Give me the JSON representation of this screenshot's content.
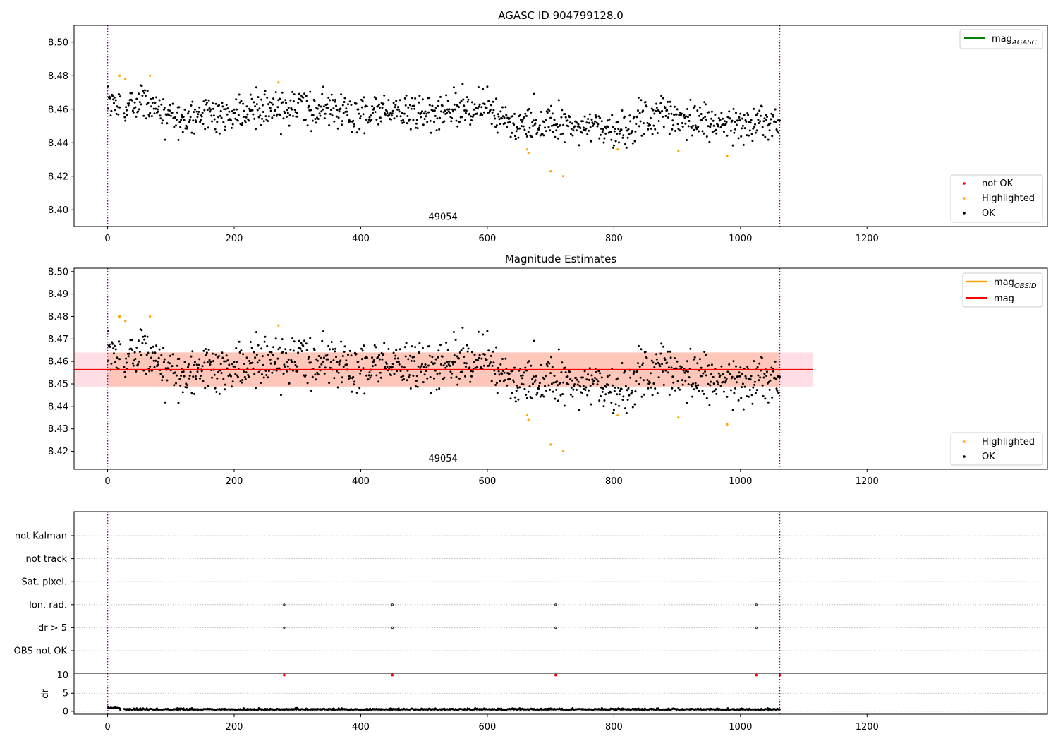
{
  "chart_data": [
    {
      "type": "scatter",
      "title": "AGASC ID 904799128.0",
      "xlim": [
        -53,
        1485
      ],
      "ylim": [
        8.39,
        8.51
      ],
      "x_ticks": [
        0,
        200,
        400,
        600,
        800,
        1000,
        1200
      ],
      "y_ticks": [
        8.4,
        8.42,
        8.44,
        8.46,
        8.48,
        8.5
      ],
      "y_tick_labels": [
        "8.40",
        "8.42",
        "8.44",
        "8.46",
        "8.48",
        "8.50"
      ],
      "annotation": {
        "text": "49054",
        "x": 530,
        "y": 8.394
      },
      "vlines": [
        0,
        1062
      ],
      "line_legend": [
        {
          "name": "mag",
          "sub": "AGASC",
          "color": "#008000"
        }
      ],
      "marker_legend": [
        {
          "name": "not OK",
          "color": "#ff0000"
        },
        {
          "name": "Highlighted",
          "color": "#ffa500"
        },
        {
          "name": "OK",
          "color": "#000000"
        }
      ],
      "mean": 8.4562,
      "noise": 0.0055,
      "highlighted": [
        [
          19,
          8.48
        ],
        [
          28,
          8.478
        ],
        [
          67,
          8.48
        ],
        [
          270,
          8.476
        ],
        [
          663,
          8.436
        ],
        [
          665,
          8.434
        ],
        [
          700,
          8.423
        ],
        [
          720,
          8.42
        ],
        [
          806,
          8.436
        ],
        [
          902,
          8.435
        ],
        [
          979,
          8.432
        ]
      ],
      "series_segments": [
        [
          0,
          8.465
        ],
        [
          60,
          8.462
        ],
        [
          120,
          8.455
        ],
        [
          200,
          8.457
        ],
        [
          280,
          8.462
        ],
        [
          400,
          8.458
        ],
        [
          500,
          8.459
        ],
        [
          600,
          8.461
        ],
        [
          650,
          8.448
        ],
        [
          700,
          8.453
        ],
        [
          760,
          8.449
        ],
        [
          820,
          8.448
        ],
        [
          880,
          8.458
        ],
        [
          940,
          8.451
        ],
        [
          1062,
          8.454
        ]
      ]
    },
    {
      "type": "scatter",
      "title": "Magnitude Estimates",
      "xlim": [
        -53,
        1485
      ],
      "ylim": [
        8.412,
        8.5015
      ],
      "x_ticks": [
        0,
        200,
        400,
        600,
        800,
        1000,
        1200
      ],
      "y_ticks": [
        8.42,
        8.43,
        8.44,
        8.45,
        8.46,
        8.47,
        8.48,
        8.49,
        8.5
      ],
      "y_tick_labels": [
        "8.42",
        "8.43",
        "8.44",
        "8.45",
        "8.46",
        "8.47",
        "8.48",
        "8.49",
        "8.50"
      ],
      "annotation": {
        "text": "49054",
        "x": 530,
        "y": 8.4155
      },
      "vlines": [
        0,
        1062
      ],
      "mag_line": 8.4563,
      "band_outer": {
        "x": [
          -53,
          1115
        ],
        "y": [
          8.4488,
          8.464
        ],
        "color": "#ffc0cb"
      },
      "band_inner": {
        "x": [
          0,
          1062
        ],
        "y": [
          8.4488,
          8.464
        ],
        "color": "#ffa07a"
      },
      "line_legend": [
        {
          "name": "mag",
          "sub": "OBSID",
          "color": "#ffa500"
        },
        {
          "name": "mag",
          "sub": "",
          "color": "#ff0000"
        }
      ],
      "marker_legend": [
        {
          "name": "Highlighted",
          "color": "#ffa500"
        },
        {
          "name": "OK",
          "color": "#000000"
        }
      ]
    },
    {
      "type": "scatter",
      "title": "",
      "xlim": [
        -53,
        1485
      ],
      "categories": [
        "not Kalman",
        "not track",
        "Sat. pixel.",
        "Ion. rad.",
        "dr > 5",
        "OBS not OK"
      ],
      "flag_points": [
        {
          "category": "Ion. rad.",
          "x": [
            279,
            450,
            708,
            1025
          ]
        },
        {
          "category": "dr > 5",
          "x": [
            279,
            450,
            708,
            1025
          ]
        }
      ],
      "vlines": [
        0,
        1062
      ]
    },
    {
      "type": "scatter",
      "title": "",
      "ylabel": "dr",
      "xlim": [
        -53,
        1485
      ],
      "ylim": [
        -0.8,
        10.5
      ],
      "x_ticks": [
        0,
        200,
        400,
        600,
        800,
        1000,
        1200
      ],
      "y_ticks": [
        0,
        5,
        10
      ],
      "y_tick_labels": [
        "0",
        "5",
        "10"
      ],
      "outliers": [
        [
          279,
          10
        ],
        [
          450,
          10
        ],
        [
          708,
          10
        ],
        [
          1025,
          10
        ],
        [
          1062,
          10
        ]
      ],
      "dr_typical": 0.4,
      "vlines": [
        0,
        1062
      ]
    }
  ]
}
